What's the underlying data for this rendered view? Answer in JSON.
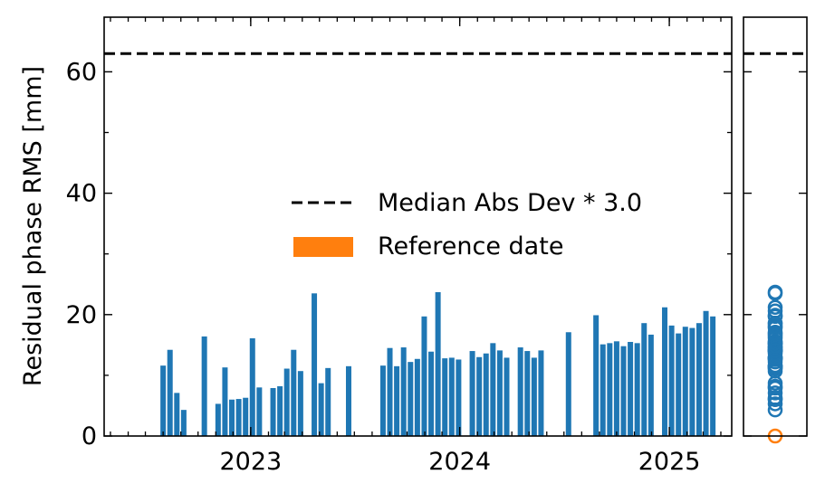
{
  "chart_data": {
    "type": "bar",
    "ylabel": "Residual phase RMS [mm]",
    "xlabel": "",
    "ylim": [
      0,
      69
    ],
    "xlim": [
      "2022-04-20",
      "2025-04-20"
    ],
    "x_ticks": [
      "2023",
      "2024",
      "2025"
    ],
    "y_ticks": [
      0,
      20,
      40,
      60
    ],
    "grid": false,
    "legend_position": "center-right",
    "threshold": {
      "label": "Median Abs Dev * 3.0",
      "value": 63.0,
      "style": "dashed",
      "color": "#000000"
    },
    "reference": {
      "label": "Reference date",
      "date": "2022-12-25",
      "value": 0,
      "color": "#ff7f0e"
    },
    "series": [
      {
        "color": "#1f77b4",
        "x": [
          "2022-08-01",
          "2022-08-13",
          "2022-08-25",
          "2022-09-06",
          "2022-10-12",
          "2022-11-05",
          "2022-11-17",
          "2022-11-29",
          "2022-12-11",
          "2022-12-23",
          "2023-01-04",
          "2023-01-16",
          "2023-02-09",
          "2023-02-21",
          "2023-03-05",
          "2023-03-17",
          "2023-03-29",
          "2023-04-22",
          "2023-05-04",
          "2023-05-16",
          "2023-06-21",
          "2023-08-20",
          "2023-09-01",
          "2023-09-13",
          "2023-09-25",
          "2023-10-07",
          "2023-10-19",
          "2023-10-31",
          "2023-11-12",
          "2023-11-24",
          "2023-12-06",
          "2023-12-18",
          "2023-12-30",
          "2024-01-23",
          "2024-02-04",
          "2024-02-16",
          "2024-02-28",
          "2024-03-11",
          "2024-03-23",
          "2024-04-16",
          "2024-04-28",
          "2024-05-10",
          "2024-05-22",
          "2024-07-09",
          "2024-08-26",
          "2024-09-07",
          "2024-09-19",
          "2024-10-01",
          "2024-10-13",
          "2024-10-25",
          "2024-11-06",
          "2024-11-18",
          "2024-11-30",
          "2024-12-24",
          "2025-01-05",
          "2025-01-17",
          "2025-01-29",
          "2025-02-10",
          "2025-02-22",
          "2025-03-06",
          "2025-03-18"
        ],
        "values": [
          11.6,
          14.2,
          7.1,
          4.3,
          16.4,
          5.3,
          11.3,
          6.0,
          6.1,
          6.3,
          16.1,
          8.0,
          7.9,
          8.2,
          11.1,
          14.2,
          10.7,
          23.5,
          8.7,
          11.2,
          11.5,
          11.6,
          14.5,
          11.5,
          14.6,
          12.2,
          12.7,
          19.7,
          13.9,
          23.7,
          12.8,
          12.9,
          12.6,
          14.0,
          13.0,
          13.6,
          15.3,
          14.1,
          12.9,
          14.6,
          14.0,
          12.9,
          14.1,
          17.1,
          19.9,
          15.1,
          15.3,
          15.6,
          14.8,
          15.5,
          15.3,
          18.6,
          16.7,
          21.2,
          18.2,
          16.9,
          18.0,
          17.8,
          18.6,
          20.6,
          19.7
        ]
      }
    ]
  }
}
